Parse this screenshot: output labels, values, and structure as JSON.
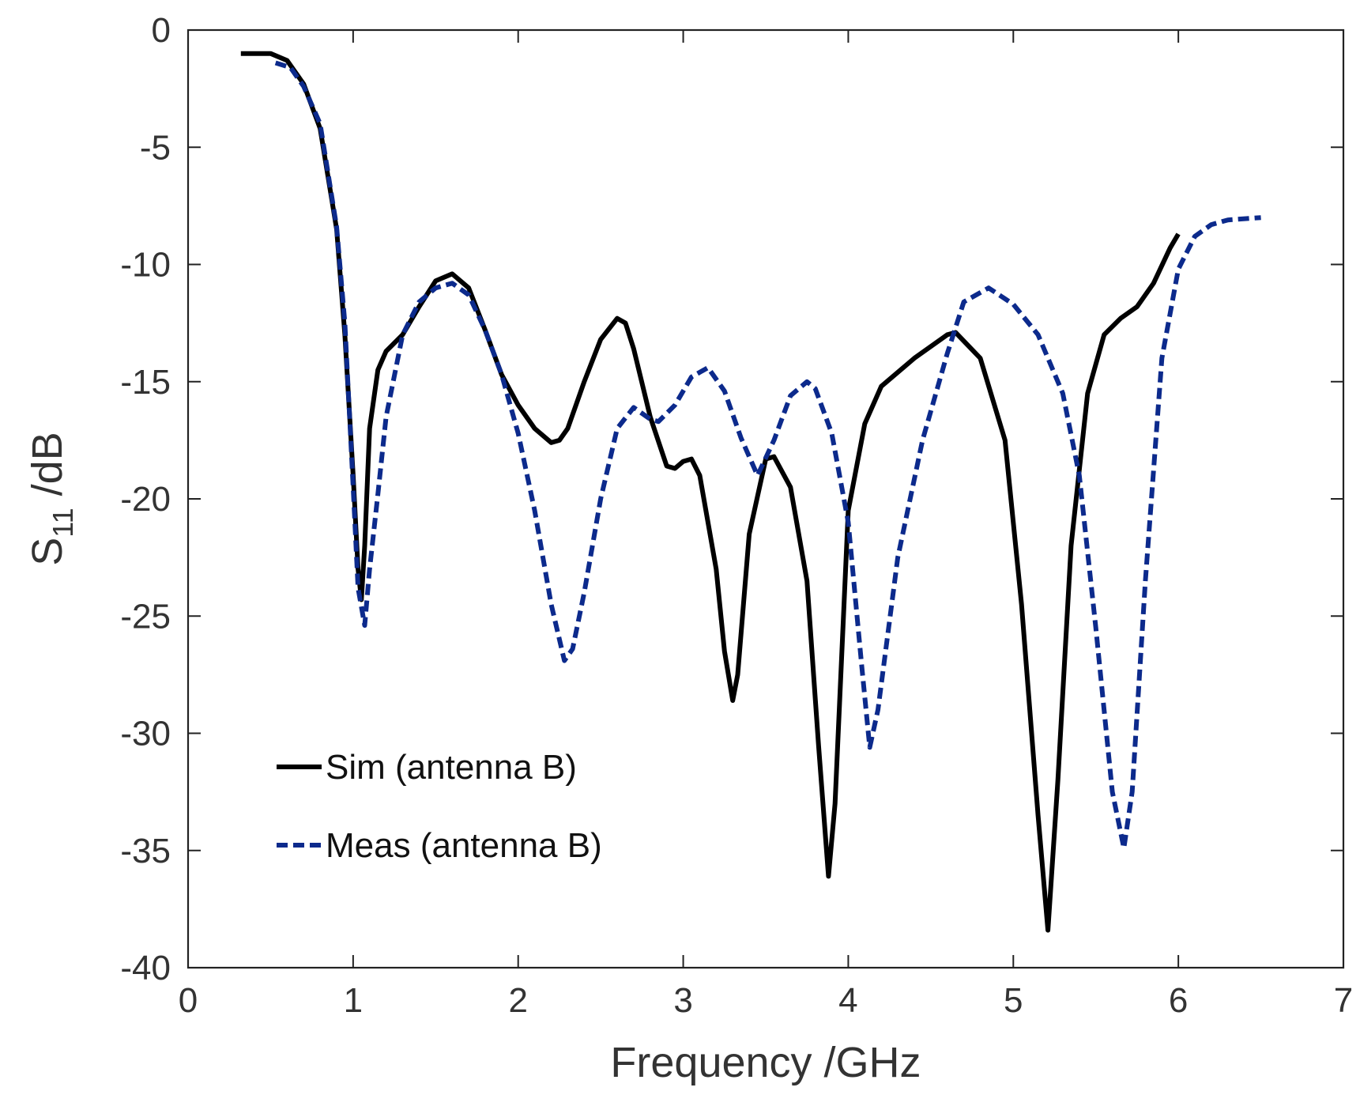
{
  "chart_data": {
    "type": "line",
    "title": "",
    "xlabel": "Frequency /GHz",
    "ylabel": {
      "main": "S",
      "subscript": "11",
      "suffix": " /dB"
    },
    "xlim": [
      0,
      7
    ],
    "ylim": [
      -40,
      0
    ],
    "xticks": [
      0,
      1,
      2,
      3,
      4,
      5,
      6,
      7
    ],
    "yticks": [
      0,
      -5,
      -10,
      -15,
      -20,
      -25,
      -30,
      -35,
      -40
    ],
    "grid": false,
    "legend_position": "bottom-left",
    "colors": {
      "sim": "#000000",
      "meas": "#0c2a8c",
      "axis": "#222222",
      "text": "#333333"
    },
    "series": [
      {
        "name": "Sim (antenna B)",
        "style": "solid",
        "color": "#000000",
        "points": [
          [
            0.32,
            -1.0
          ],
          [
            0.5,
            -1.0
          ],
          [
            0.6,
            -1.3
          ],
          [
            0.7,
            -2.3
          ],
          [
            0.8,
            -4.2
          ],
          [
            0.9,
            -8.5
          ],
          [
            0.95,
            -13.0
          ],
          [
            1.0,
            -19.0
          ],
          [
            1.03,
            -23.0
          ],
          [
            1.05,
            -24.3
          ],
          [
            1.07,
            -22.0
          ],
          [
            1.1,
            -17.0
          ],
          [
            1.15,
            -14.5
          ],
          [
            1.2,
            -13.7
          ],
          [
            1.3,
            -13.0
          ],
          [
            1.4,
            -11.8
          ],
          [
            1.5,
            -10.7
          ],
          [
            1.6,
            -10.4
          ],
          [
            1.7,
            -11.0
          ],
          [
            1.8,
            -12.8
          ],
          [
            1.9,
            -14.7
          ],
          [
            2.0,
            -16.0
          ],
          [
            2.1,
            -17.0
          ],
          [
            2.2,
            -17.6
          ],
          [
            2.25,
            -17.5
          ],
          [
            2.3,
            -17.0
          ],
          [
            2.4,
            -15.0
          ],
          [
            2.5,
            -13.2
          ],
          [
            2.6,
            -12.3
          ],
          [
            2.65,
            -12.5
          ],
          [
            2.7,
            -13.6
          ],
          [
            2.8,
            -16.5
          ],
          [
            2.9,
            -18.6
          ],
          [
            2.95,
            -18.7
          ],
          [
            3.0,
            -18.4
          ],
          [
            3.05,
            -18.3
          ],
          [
            3.1,
            -19.0
          ],
          [
            3.2,
            -23.0
          ],
          [
            3.25,
            -26.5
          ],
          [
            3.3,
            -28.6
          ],
          [
            3.33,
            -27.5
          ],
          [
            3.4,
            -21.5
          ],
          [
            3.5,
            -18.3
          ],
          [
            3.55,
            -18.2
          ],
          [
            3.65,
            -19.5
          ],
          [
            3.75,
            -23.5
          ],
          [
            3.82,
            -30.5
          ],
          [
            3.88,
            -36.1
          ],
          [
            3.92,
            -33.0
          ],
          [
            4.0,
            -20.5
          ],
          [
            4.1,
            -16.8
          ],
          [
            4.2,
            -15.2
          ],
          [
            4.4,
            -14.0
          ],
          [
            4.6,
            -13.0
          ],
          [
            4.65,
            -12.9
          ],
          [
            4.8,
            -14.0
          ],
          [
            4.95,
            -17.5
          ],
          [
            5.05,
            -24.5
          ],
          [
            5.15,
            -33.5
          ],
          [
            5.21,
            -38.4
          ],
          [
            5.27,
            -32.0
          ],
          [
            5.35,
            -22.0
          ],
          [
            5.45,
            -15.5
          ],
          [
            5.55,
            -13.0
          ],
          [
            5.65,
            -12.3
          ],
          [
            5.75,
            -11.8
          ],
          [
            5.85,
            -10.8
          ],
          [
            5.95,
            -9.3
          ],
          [
            6.0,
            -8.7
          ]
        ]
      },
      {
        "name": "Meas (antenna B)",
        "style": "dashed",
        "color": "#0c2a8c",
        "points": [
          [
            0.53,
            -1.4
          ],
          [
            0.62,
            -1.6
          ],
          [
            0.7,
            -2.4
          ],
          [
            0.8,
            -4.0
          ],
          [
            0.9,
            -8.4
          ],
          [
            0.95,
            -12.5
          ],
          [
            1.0,
            -19.5
          ],
          [
            1.03,
            -23.8
          ],
          [
            1.07,
            -25.4
          ],
          [
            1.1,
            -23.0
          ],
          [
            1.15,
            -19.8
          ],
          [
            1.2,
            -16.5
          ],
          [
            1.3,
            -13.0
          ],
          [
            1.4,
            -11.6
          ],
          [
            1.5,
            -11.0
          ],
          [
            1.6,
            -10.8
          ],
          [
            1.7,
            -11.3
          ],
          [
            1.8,
            -12.8
          ],
          [
            1.9,
            -14.7
          ],
          [
            2.0,
            -17.2
          ],
          [
            2.1,
            -20.5
          ],
          [
            2.2,
            -24.5
          ],
          [
            2.28,
            -26.9
          ],
          [
            2.33,
            -26.4
          ],
          [
            2.4,
            -24.0
          ],
          [
            2.5,
            -20.0
          ],
          [
            2.6,
            -17.0
          ],
          [
            2.7,
            -16.1
          ],
          [
            2.8,
            -16.6
          ],
          [
            2.85,
            -16.7
          ],
          [
            2.95,
            -16.0
          ],
          [
            3.05,
            -14.8
          ],
          [
            3.15,
            -14.4
          ],
          [
            3.25,
            -15.4
          ],
          [
            3.35,
            -17.4
          ],
          [
            3.45,
            -19.0
          ],
          [
            3.55,
            -17.5
          ],
          [
            3.65,
            -15.6
          ],
          [
            3.75,
            -15.0
          ],
          [
            3.8,
            -15.3
          ],
          [
            3.9,
            -17.2
          ],
          [
            4.0,
            -21.0
          ],
          [
            4.08,
            -27.0
          ],
          [
            4.13,
            -30.6
          ],
          [
            4.18,
            -29.0
          ],
          [
            4.3,
            -22.5
          ],
          [
            4.45,
            -17.5
          ],
          [
            4.6,
            -13.8
          ],
          [
            4.7,
            -11.6
          ],
          [
            4.85,
            -11.0
          ],
          [
            5.0,
            -11.7
          ],
          [
            5.15,
            -13.0
          ],
          [
            5.3,
            -15.5
          ],
          [
            5.4,
            -19.0
          ],
          [
            5.5,
            -25.5
          ],
          [
            5.6,
            -32.5
          ],
          [
            5.67,
            -34.9
          ],
          [
            5.72,
            -32.5
          ],
          [
            5.8,
            -23.5
          ],
          [
            5.9,
            -14.0
          ],
          [
            6.0,
            -10.2
          ],
          [
            6.1,
            -8.8
          ],
          [
            6.2,
            -8.3
          ],
          [
            6.3,
            -8.1
          ],
          [
            6.5,
            -8.0
          ]
        ]
      }
    ]
  }
}
